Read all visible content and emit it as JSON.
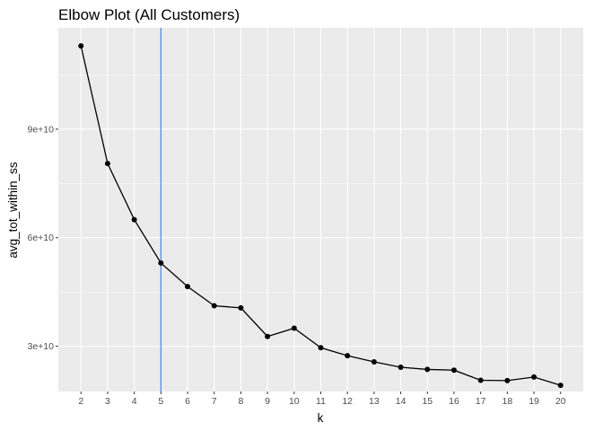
{
  "chart_data": {
    "type": "line",
    "title": "Elbow Plot (All Customers)",
    "xlabel": "k",
    "ylabel": "avg_tot_within_ss",
    "x": [
      2,
      3,
      4,
      5,
      6,
      7,
      8,
      9,
      10,
      11,
      12,
      13,
      14,
      15,
      16,
      17,
      18,
      19,
      20
    ],
    "y": [
      113000000000,
      80500000000,
      65000000000,
      53000000000,
      46500000000,
      41200000000,
      40600000000,
      32700000000,
      35000000000,
      29600000000,
      27400000000,
      25700000000,
      24200000000,
      23600000000,
      23400000000,
      20600000000,
      20500000000,
      21500000000,
      19200000000
    ],
    "xlim": [
      1.15,
      20.85
    ],
    "ylim": [
      17500000000,
      118000000000
    ],
    "xticks": [
      2,
      3,
      4,
      5,
      6,
      7,
      8,
      9,
      10,
      11,
      12,
      13,
      14,
      15,
      16,
      17,
      18,
      19,
      20
    ],
    "xtick_labels": [
      "2",
      "3",
      "4",
      "5",
      "6",
      "7",
      "8",
      "9",
      "10",
      "11",
      "12",
      "13",
      "14",
      "15",
      "16",
      "17",
      "18",
      "19",
      "20"
    ],
    "yticks": [
      30000000000,
      60000000000,
      90000000000
    ],
    "ytick_labels": [
      "3e+10",
      "6e+10",
      "9e+10"
    ],
    "vline": {
      "x": 5,
      "color": "#3b82f6"
    },
    "grid": true,
    "colors": {
      "panel": "#ebebeb",
      "grid_major": "#ffffff",
      "line": "#000000",
      "point": "#000000"
    }
  }
}
